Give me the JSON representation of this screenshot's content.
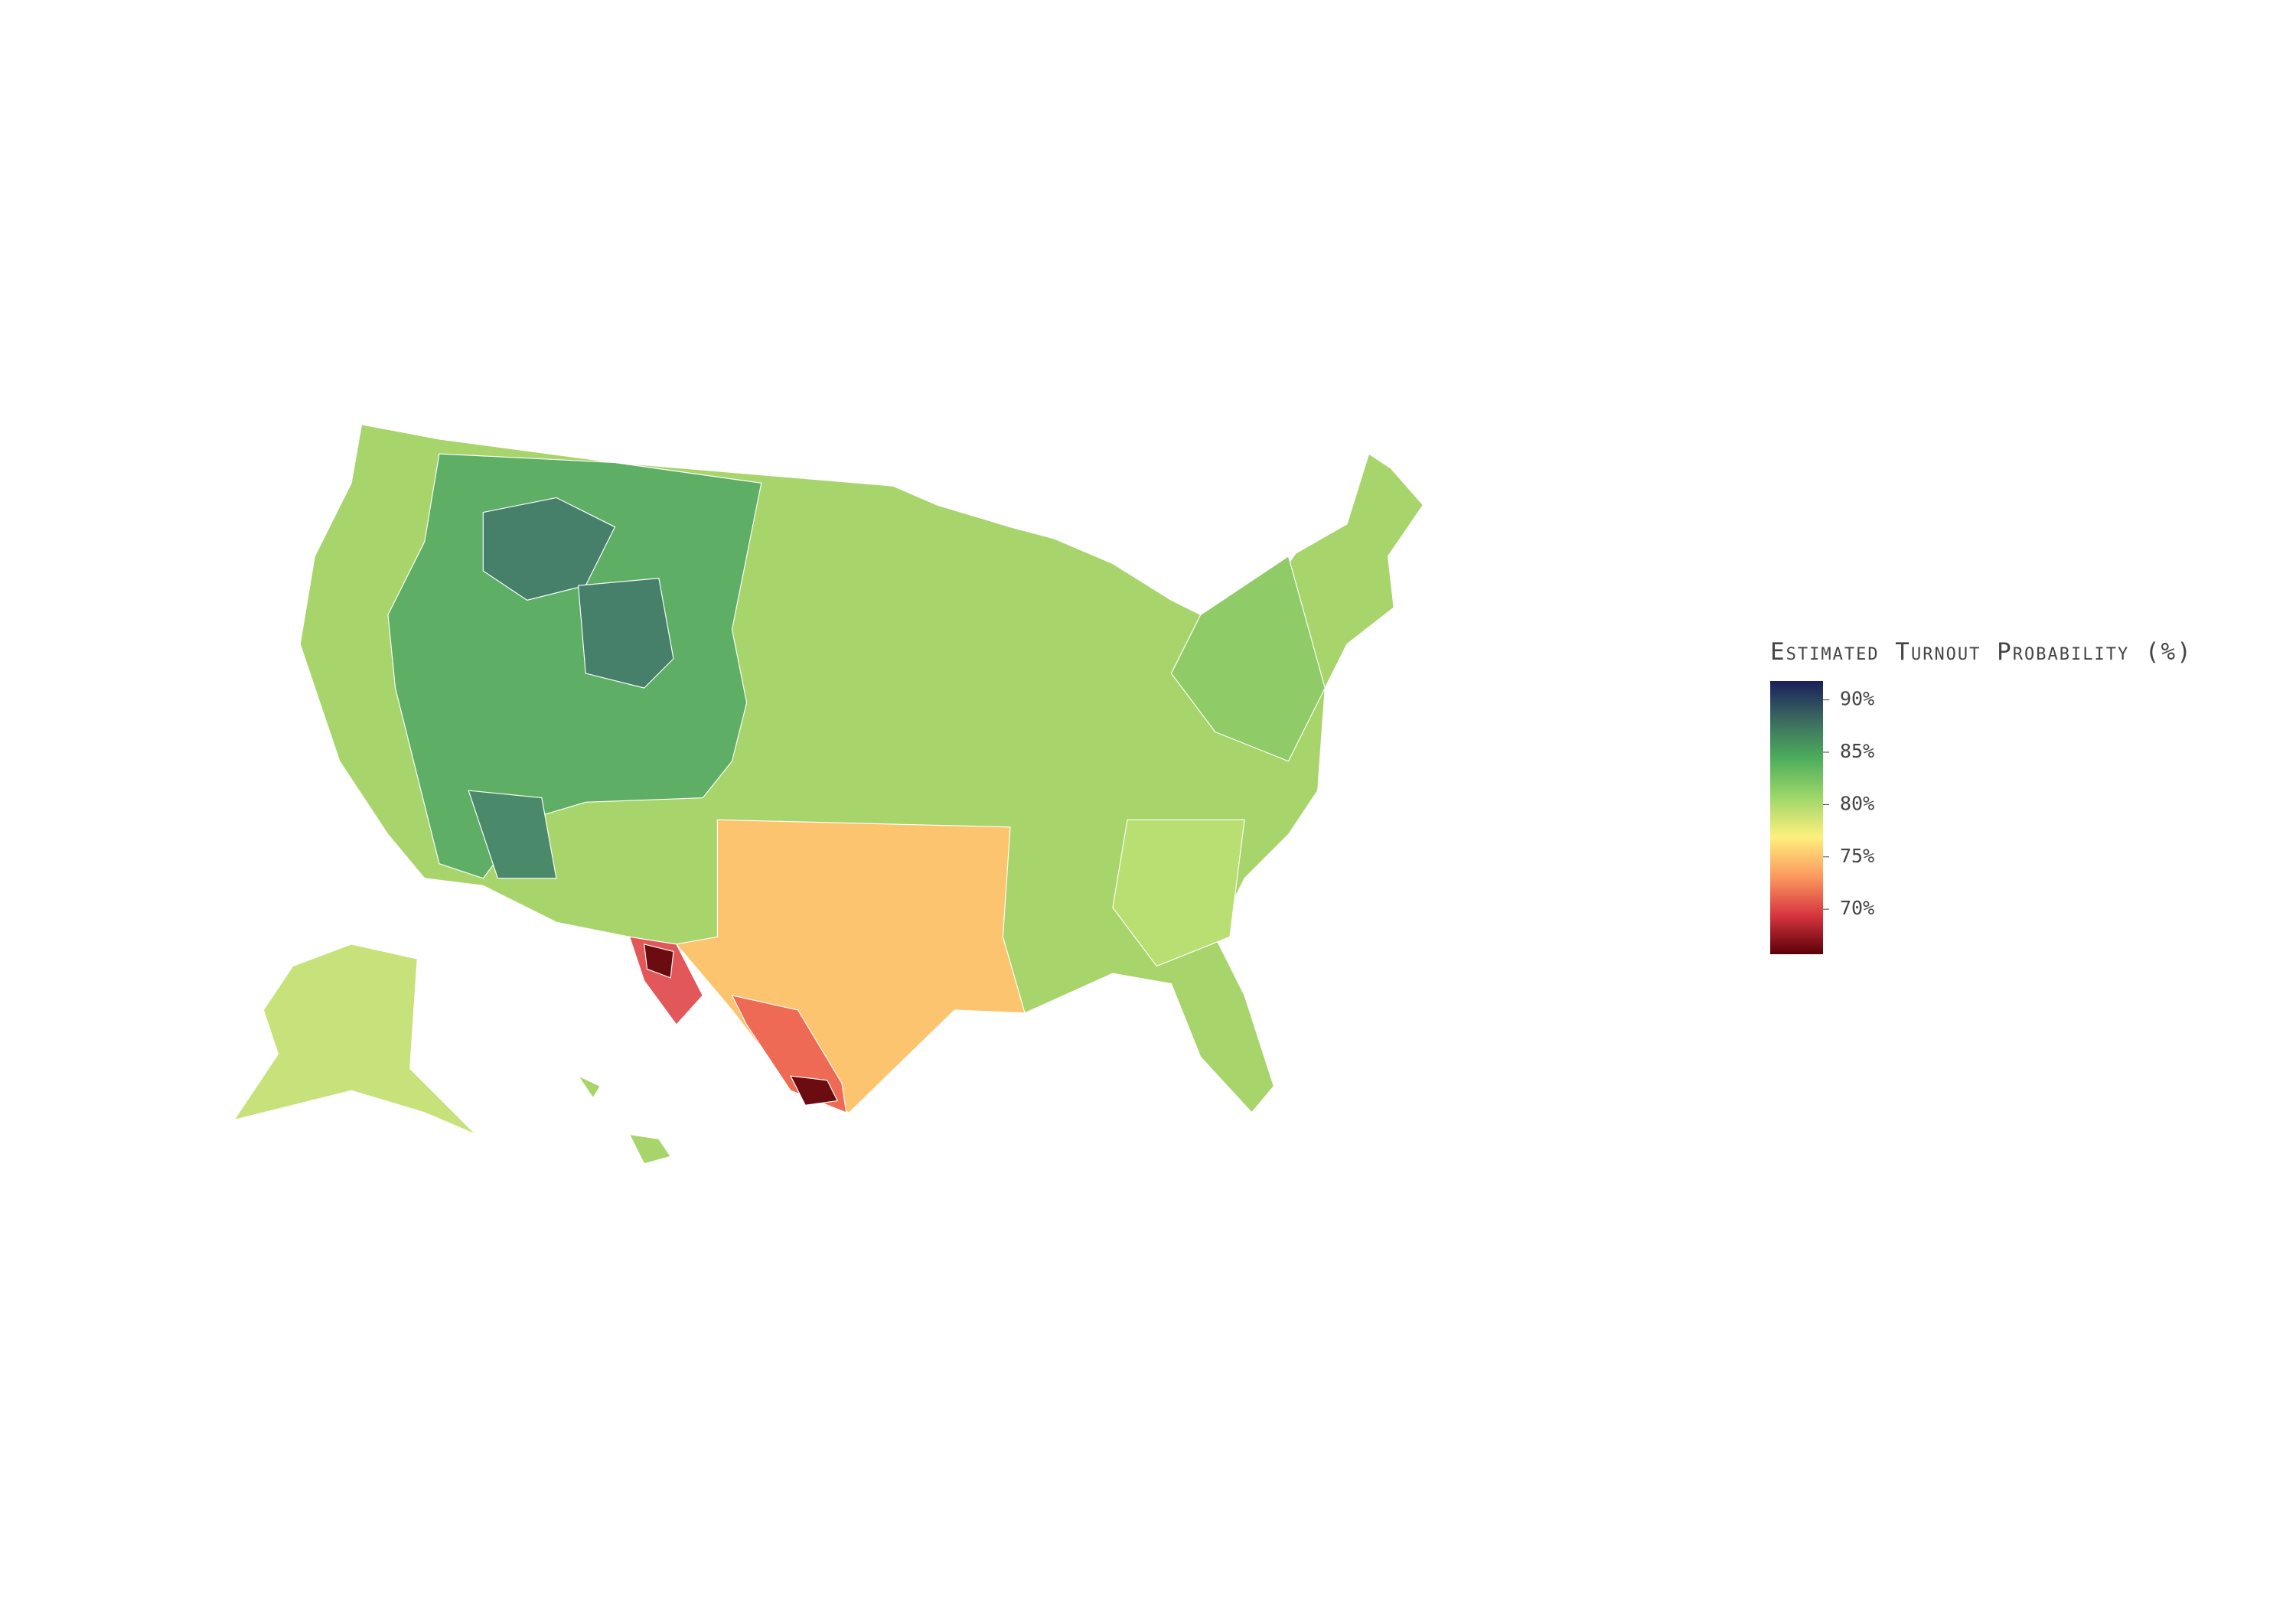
{
  "chart_data": {
    "type": "choropleth",
    "colorbar_title": "Estimated Turnout Probability (%)",
    "zlim": [
      65.7,
      91.8
    ],
    "zticks": [
      {
        "value": 70,
        "label": "70%"
      },
      {
        "value": 75,
        "label": "75%"
      },
      {
        "value": 80,
        "label": "80%"
      },
      {
        "value": 85,
        "label": "85%"
      },
      {
        "value": 90,
        "label": "90%"
      }
    ],
    "colorscale": [
      "#5c0008",
      "#d7363f",
      "#fb9a5f",
      "#fdf07d",
      "#9ed86a",
      "#4eae5c",
      "#3b6a5f",
      "#1a1f5c"
    ]
  }
}
